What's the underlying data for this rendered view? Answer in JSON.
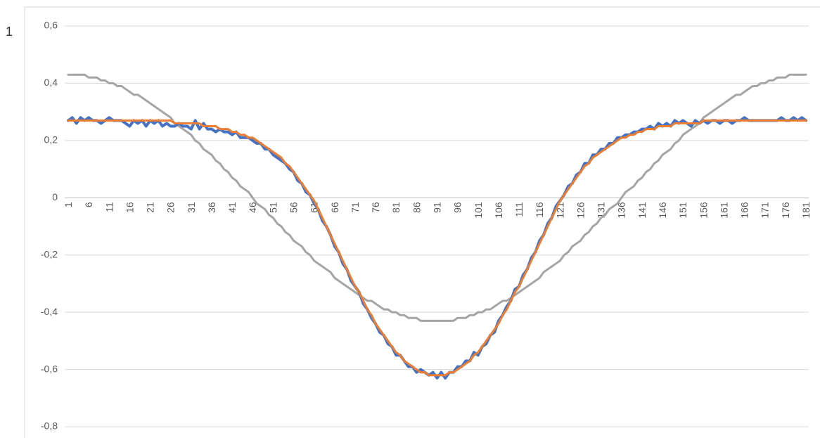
{
  "chart_data": {
    "type": "line",
    "corner_text": "1",
    "categories": [
      "1",
      null,
      null,
      null,
      null,
      "6",
      null,
      null,
      null,
      null,
      "11",
      null,
      null,
      null,
      null,
      "16",
      null,
      null,
      null,
      null,
      "21",
      null,
      null,
      null,
      null,
      "26",
      null,
      null,
      null,
      null,
      "31",
      null,
      null,
      null,
      null,
      "36",
      null,
      null,
      null,
      null,
      "41",
      null,
      null,
      null,
      null,
      "46",
      null,
      null,
      null,
      null,
      "51",
      null,
      null,
      null,
      null,
      "56",
      null,
      null,
      null,
      null,
      "61",
      null,
      null,
      null,
      null,
      "66",
      null,
      null,
      null,
      null,
      "71",
      null,
      null,
      null,
      null,
      "76",
      null,
      null,
      null,
      null,
      "81",
      null,
      null,
      null,
      null,
      "86",
      null,
      null,
      null,
      null,
      "91",
      null,
      null,
      null,
      null,
      "96",
      null,
      null,
      null,
      null,
      "101",
      null,
      null,
      null,
      null,
      "106",
      null,
      null,
      null,
      null,
      "111",
      null,
      null,
      null,
      null,
      "116",
      null,
      null,
      null,
      null,
      "121",
      null,
      null,
      null,
      null,
      "126",
      null,
      null,
      null,
      null,
      "131",
      null,
      null,
      null,
      null,
      "136",
      null,
      null,
      null,
      null,
      "141",
      null,
      null,
      null,
      null,
      "146",
      null,
      null,
      null,
      null,
      "151",
      null,
      null,
      null,
      null,
      "156",
      null,
      null,
      null,
      null,
      "161",
      null,
      null,
      null,
      null,
      "166",
      null,
      null,
      null,
      null,
      "171",
      null,
      null,
      null,
      null,
      "176",
      null,
      null,
      null,
      null,
      "181"
    ],
    "series": [
      {
        "color": "#a5a5a5",
        "values": [
          0.43,
          0.43,
          0.43,
          0.43,
          0.43,
          0.42,
          0.42,
          0.42,
          0.41,
          0.41,
          0.4,
          0.4,
          0.39,
          0.39,
          0.38,
          0.37,
          0.36,
          0.36,
          0.35,
          0.34,
          0.33,
          0.32,
          0.31,
          0.3,
          0.29,
          0.28,
          0.26,
          0.25,
          0.24,
          0.23,
          0.22,
          0.2,
          0.19,
          0.17,
          0.16,
          0.15,
          0.13,
          0.12,
          0.1,
          0.09,
          0.07,
          0.06,
          0.04,
          0.03,
          0.02,
          0,
          -0.02,
          -0.03,
          -0.04,
          -0.06,
          -0.07,
          -0.09,
          -0.1,
          -0.12,
          -0.13,
          -0.15,
          -0.16,
          -0.17,
          -0.19,
          -0.2,
          -0.22,
          -0.23,
          -0.24,
          -0.25,
          -0.26,
          -0.28,
          -0.29,
          -0.3,
          -0.31,
          -0.32,
          -0.33,
          -0.34,
          -0.35,
          -0.36,
          -0.36,
          -0.37,
          -0.38,
          -0.39,
          -0.39,
          -0.4,
          -0.4,
          -0.41,
          -0.41,
          -0.42,
          -0.42,
          -0.42,
          -0.43,
          -0.43,
          -0.43,
          -0.43,
          -0.43,
          -0.43,
          -0.43,
          -0.43,
          -0.43,
          -0.42,
          -0.42,
          -0.42,
          -0.41,
          -0.41,
          -0.4,
          -0.4,
          -0.39,
          -0.39,
          -0.38,
          -0.37,
          -0.36,
          -0.36,
          -0.35,
          -0.34,
          -0.33,
          -0.32,
          -0.31,
          -0.3,
          -0.29,
          -0.28,
          -0.26,
          -0.25,
          -0.24,
          -0.23,
          -0.22,
          -0.2,
          -0.19,
          -0.17,
          -0.16,
          -0.15,
          -0.13,
          -0.12,
          -0.1,
          -0.09,
          -0.07,
          -0.06,
          -0.04,
          -0.03,
          -0.02,
          0,
          0.02,
          0.03,
          0.04,
          0.06,
          0.07,
          0.09,
          0.1,
          0.12,
          0.13,
          0.15,
          0.16,
          0.17,
          0.19,
          0.2,
          0.22,
          0.23,
          0.24,
          0.25,
          0.26,
          0.28,
          0.29,
          0.3,
          0.31,
          0.32,
          0.33,
          0.34,
          0.35,
          0.36,
          0.36,
          0.37,
          0.38,
          0.39,
          0.39,
          0.4,
          0.4,
          0.41,
          0.41,
          0.42,
          0.42,
          0.42,
          0.43,
          0.43,
          0.43,
          0.43,
          0.43
        ]
      },
      {
        "color": "#4472c4",
        "values": [
          0.27,
          0.28,
          0.26,
          0.28,
          0.27,
          0.28,
          0.27,
          0.27,
          0.26,
          0.27,
          0.28,
          0.27,
          0.27,
          0.27,
          0.26,
          0.25,
          0.27,
          0.26,
          0.27,
          0.25,
          0.27,
          0.26,
          0.27,
          0.25,
          0.26,
          0.25,
          0.25,
          0.26,
          0.25,
          0.25,
          0.24,
          0.27,
          0.24,
          0.26,
          0.24,
          0.24,
          0.23,
          0.24,
          0.23,
          0.23,
          0.22,
          0.23,
          0.21,
          0.21,
          0.21,
          0.2,
          0.19,
          0.19,
          0.17,
          0.17,
          0.15,
          0.14,
          0.13,
          0.12,
          0.1,
          0.09,
          0.06,
          0.05,
          0.02,
          0.01,
          -0.02,
          -0.04,
          -0.08,
          -0.1,
          -0.13,
          -0.17,
          -0.19,
          -0.23,
          -0.25,
          -0.29,
          -0.31,
          -0.33,
          -0.37,
          -0.39,
          -0.42,
          -0.44,
          -0.47,
          -0.48,
          -0.51,
          -0.52,
          -0.55,
          -0.55,
          -0.57,
          -0.59,
          -0.59,
          -0.61,
          -0.6,
          -0.61,
          -0.62,
          -0.61,
          -0.63,
          -0.61,
          -0.63,
          -0.61,
          -0.61,
          -0.59,
          -0.59,
          -0.57,
          -0.57,
          -0.54,
          -0.55,
          -0.52,
          -0.51,
          -0.48,
          -0.47,
          -0.43,
          -0.41,
          -0.38,
          -0.36,
          -0.32,
          -0.31,
          -0.27,
          -0.25,
          -0.21,
          -0.19,
          -0.15,
          -0.13,
          -0.09,
          -0.07,
          -0.03,
          -0.01,
          0.01,
          0.04,
          0.05,
          0.08,
          0.09,
          0.12,
          0.12,
          0.15,
          0.15,
          0.17,
          0.17,
          0.19,
          0.19,
          0.21,
          0.21,
          0.22,
          0.22,
          0.23,
          0.23,
          0.24,
          0.24,
          0.25,
          0.24,
          0.26,
          0.25,
          0.26,
          0.25,
          0.27,
          0.26,
          0.27,
          0.26,
          0.25,
          0.27,
          0.26,
          0.27,
          0.26,
          0.27,
          0.27,
          0.26,
          0.27,
          0.27,
          0.26,
          0.27,
          0.27,
          0.28,
          0.27,
          0.27,
          0.27,
          0.27,
          0.27,
          0.27,
          0.27,
          0.27,
          0.28,
          0.27,
          0.27,
          0.28,
          0.27,
          0.28,
          0.27
        ]
      },
      {
        "color": "#ed7d31",
        "values": [
          0.27,
          0.27,
          0.27,
          0.27,
          0.27,
          0.27,
          0.27,
          0.27,
          0.27,
          0.27,
          0.27,
          0.27,
          0.27,
          0.27,
          0.27,
          0.27,
          0.27,
          0.27,
          0.27,
          0.27,
          0.27,
          0.27,
          0.27,
          0.27,
          0.27,
          0.27,
          0.26,
          0.26,
          0.26,
          0.26,
          0.26,
          0.26,
          0.26,
          0.25,
          0.25,
          0.25,
          0.25,
          0.24,
          0.24,
          0.24,
          0.23,
          0.23,
          0.22,
          0.22,
          0.21,
          0.21,
          0.2,
          0.19,
          0.18,
          0.17,
          0.16,
          0.15,
          0.14,
          0.12,
          0.11,
          0.09,
          0.07,
          0.05,
          0.03,
          0.01,
          -0.01,
          -0.04,
          -0.07,
          -0.1,
          -0.13,
          -0.16,
          -0.19,
          -0.22,
          -0.25,
          -0.28,
          -0.31,
          -0.33,
          -0.36,
          -0.39,
          -0.41,
          -0.44,
          -0.46,
          -0.48,
          -0.5,
          -0.52,
          -0.54,
          -0.55,
          -0.57,
          -0.58,
          -0.59,
          -0.6,
          -0.61,
          -0.61,
          -0.62,
          -0.62,
          -0.62,
          -0.62,
          -0.62,
          -0.61,
          -0.61,
          -0.6,
          -0.59,
          -0.58,
          -0.57,
          -0.55,
          -0.54,
          -0.52,
          -0.5,
          -0.48,
          -0.46,
          -0.44,
          -0.41,
          -0.39,
          -0.36,
          -0.33,
          -0.31,
          -0.28,
          -0.25,
          -0.22,
          -0.19,
          -0.16,
          -0.13,
          -0.1,
          -0.07,
          -0.04,
          -0.01,
          0.01,
          0.03,
          0.05,
          0.07,
          0.09,
          0.11,
          0.12,
          0.14,
          0.15,
          0.16,
          0.17,
          0.18,
          0.19,
          0.2,
          0.21,
          0.21,
          0.22,
          0.22,
          0.23,
          0.23,
          0.24,
          0.24,
          0.24,
          0.25,
          0.25,
          0.25,
          0.25,
          0.26,
          0.26,
          0.26,
          0.26,
          0.26,
          0.26,
          0.26,
          0.27,
          0.27,
          0.27,
          0.27,
          0.27,
          0.27,
          0.27,
          0.27,
          0.27,
          0.27,
          0.27,
          0.27,
          0.27,
          0.27,
          0.27,
          0.27,
          0.27,
          0.27,
          0.27,
          0.27,
          0.27,
          0.27,
          0.27,
          0.27,
          0.27,
          0.27
        ]
      }
    ],
    "ylim": [
      -0.8,
      0.6
    ],
    "yticks": [
      {
        "value": 0.6,
        "label": "0,6"
      },
      {
        "value": 0.4,
        "label": "0,4"
      },
      {
        "value": 0.2,
        "label": "0,2"
      },
      0,
      {
        "value": -0.2,
        "label": "-0,2"
      },
      {
        "value": -0.4,
        "label": "-0,4"
      },
      {
        "value": -0.6,
        "label": "-0,6"
      },
      {
        "value": -0.8,
        "label": "-0,8"
      }
    ],
    "grid": true
  }
}
